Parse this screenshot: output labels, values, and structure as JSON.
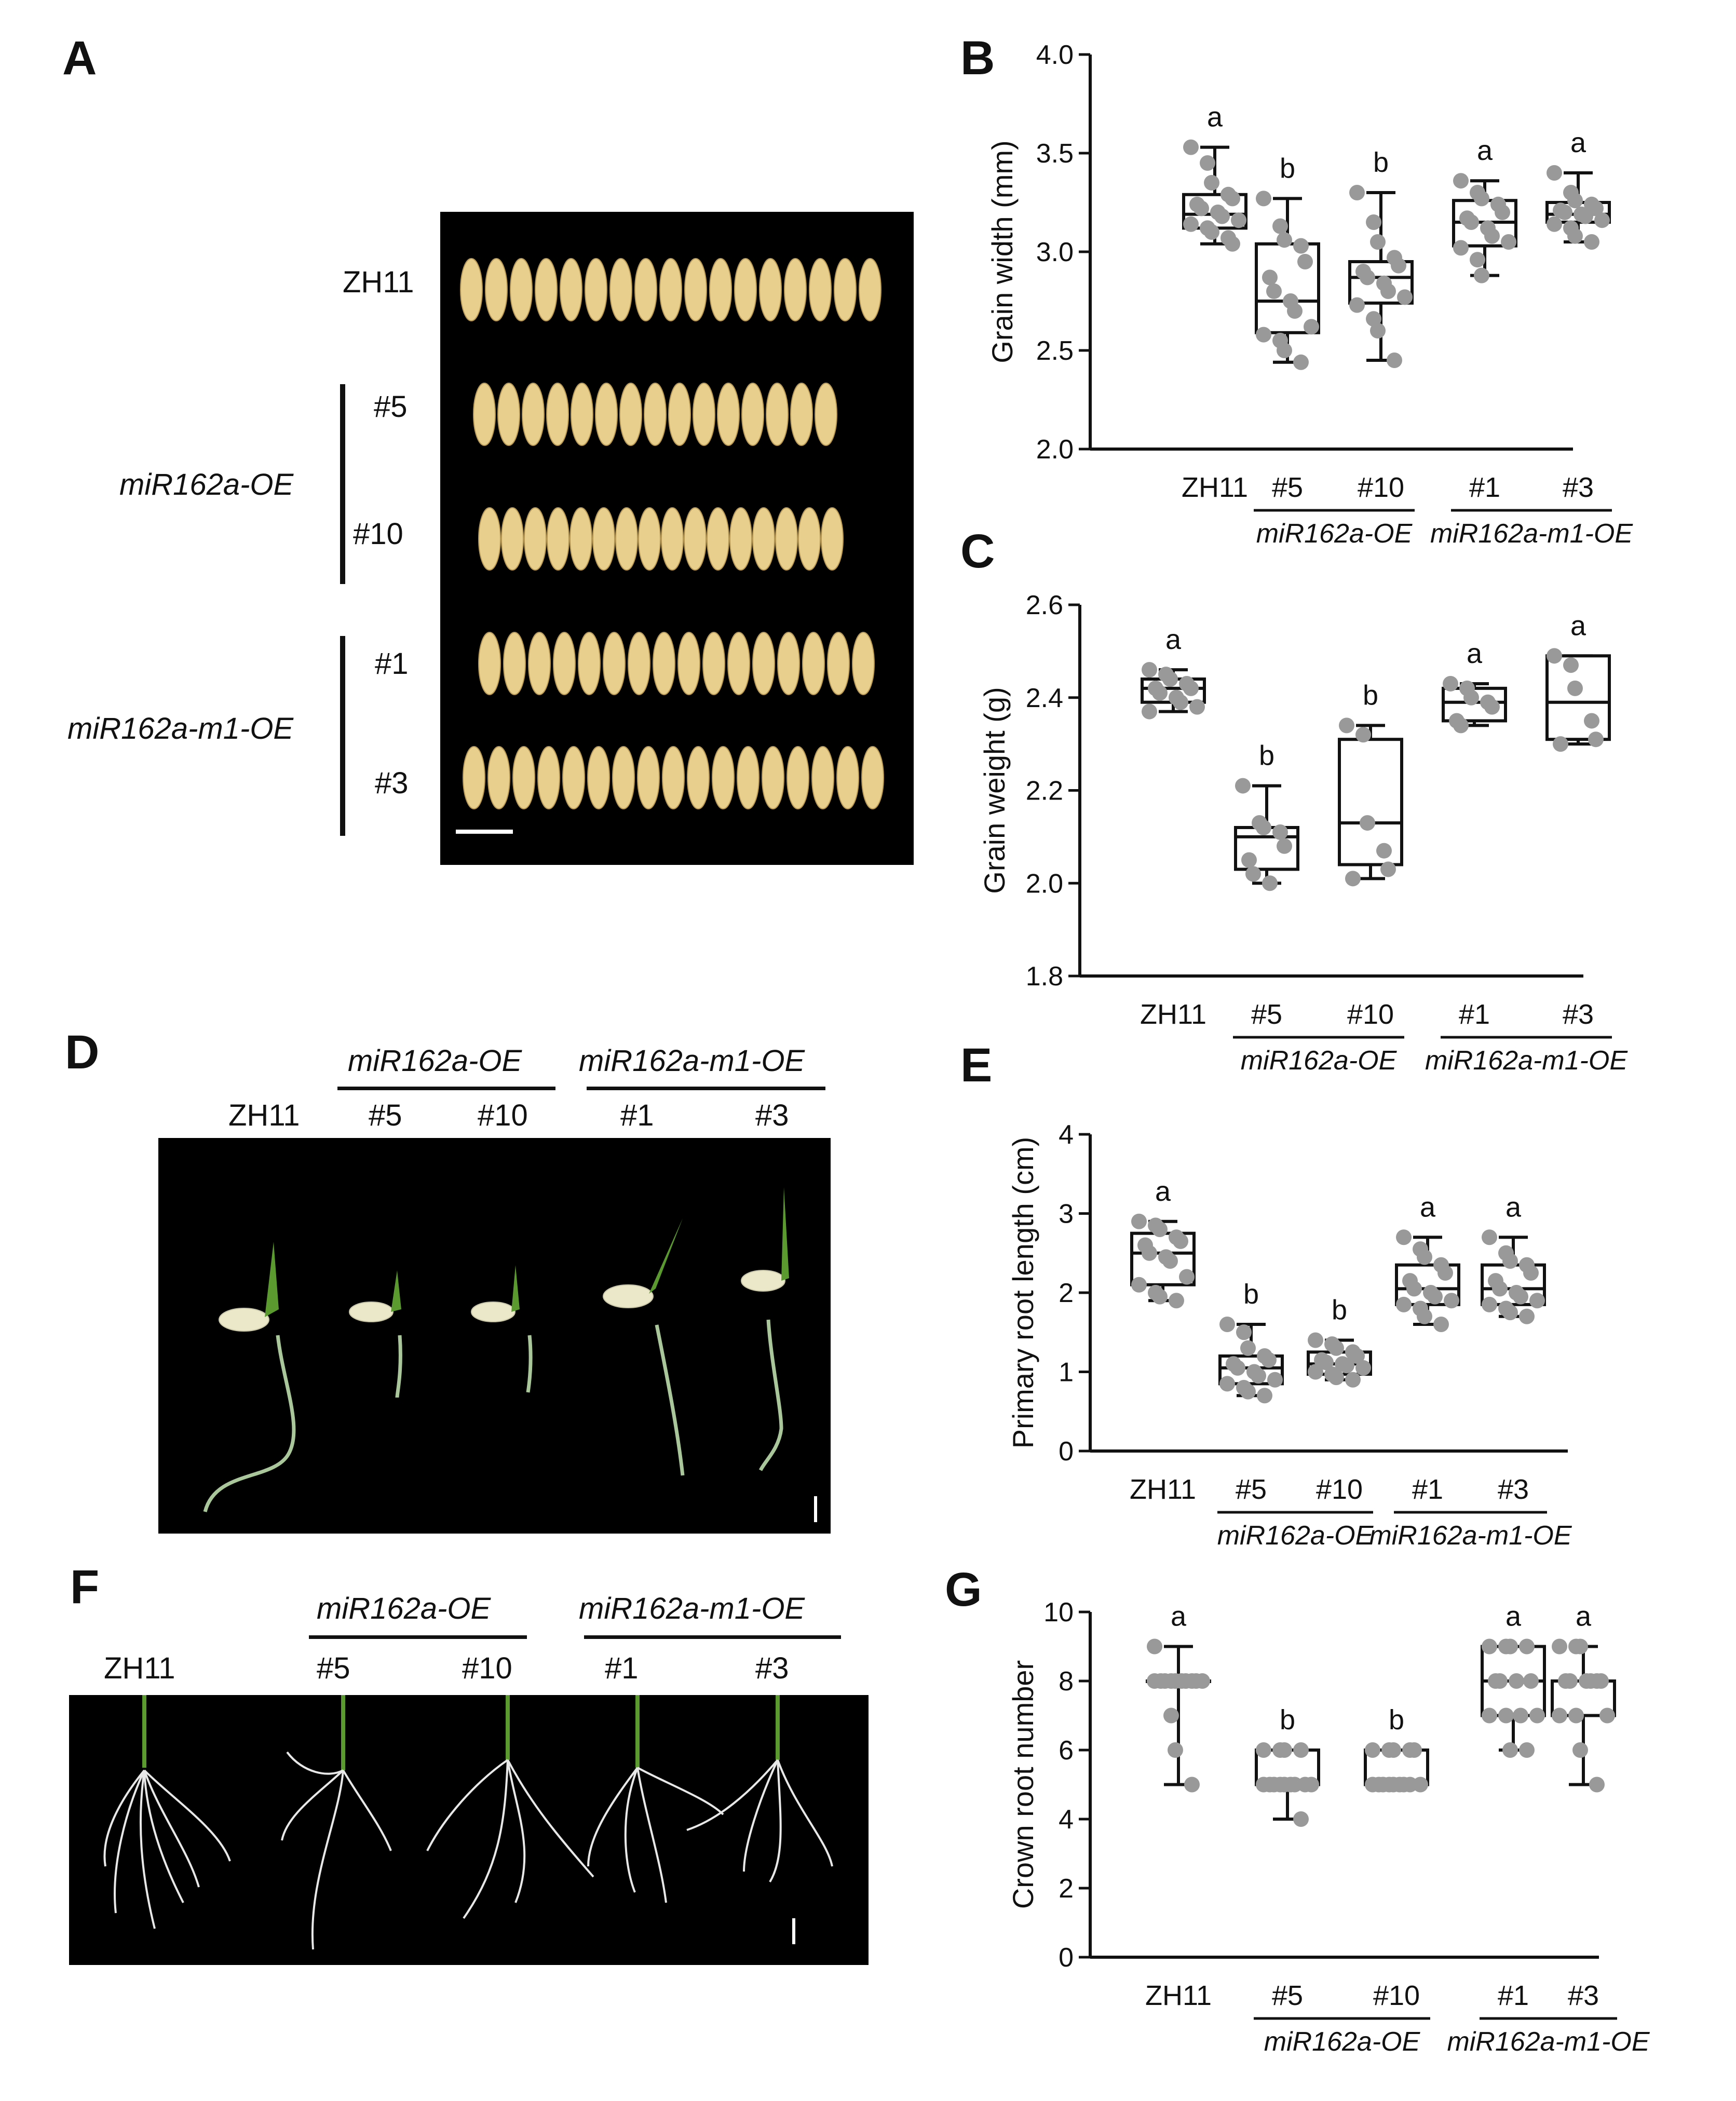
{
  "panels": {
    "A": {
      "letter": "A",
      "rows": [
        "ZH11",
        "#5",
        "#10",
        "#1",
        "#3"
      ],
      "groups": [
        "miR162a-OE",
        "miR162a-m1-OE"
      ]
    },
    "D": {
      "letter": "D",
      "labels": [
        "ZH11",
        "#5",
        "#10",
        "#1",
        "#3"
      ],
      "groups": [
        "miR162a-OE",
        "miR162a-m1-OE"
      ]
    },
    "F": {
      "letter": "F",
      "labels": [
        "ZH11",
        "#5",
        "#10",
        "#1",
        "#3"
      ],
      "groups": [
        "miR162a-OE",
        "miR162a-m1-OE"
      ]
    }
  },
  "colors": {
    "point": "#999999",
    "box": "#111111"
  },
  "chart_data": [
    {
      "panel": "B",
      "type": "box",
      "ylabel": "Grain width (mm)",
      "ylim": [
        2.0,
        4.0
      ],
      "yticks": [
        2.0,
        2.5,
        3.0,
        3.5,
        4.0
      ],
      "yticklabels": [
        "2.0",
        "2.5",
        "3.0",
        "3.5",
        "4.0"
      ],
      "categories": [
        "ZH11",
        "#5",
        "#10",
        "#1",
        "#3"
      ],
      "groups": [
        {
          "label": "miR162a-OE",
          "from": 1,
          "to": 2
        },
        {
          "label": "miR162a-m1-OE",
          "from": 3,
          "to": 4
        }
      ],
      "letters": [
        "a",
        "b",
        "b",
        "a",
        "a"
      ],
      "boxes": [
        {
          "min": 3.04,
          "q1": 3.12,
          "median": 3.19,
          "q3": 3.29,
          "max": 3.53
        },
        {
          "min": 2.44,
          "q1": 2.59,
          "median": 2.75,
          "q3": 3.04,
          "max": 3.27
        },
        {
          "min": 2.45,
          "q1": 2.74,
          "median": 2.87,
          "q3": 2.95,
          "max": 3.3
        },
        {
          "min": 2.88,
          "q1": 3.03,
          "median": 3.15,
          "q3": 3.26,
          "max": 3.36
        },
        {
          "min": 3.05,
          "q1": 3.15,
          "median": 3.19,
          "q3": 3.25,
          "max": 3.4
        }
      ],
      "points": [
        [
          3.53,
          3.45,
          3.35,
          3.29,
          3.27,
          3.24,
          3.22,
          3.2,
          3.18,
          3.16,
          3.14,
          3.12,
          3.1,
          3.07,
          3.04
        ],
        [
          3.27,
          3.13,
          3.06,
          3.03,
          2.95,
          2.87,
          2.8,
          2.75,
          2.7,
          2.62,
          2.58,
          2.55,
          2.5,
          2.44
        ],
        [
          3.3,
          3.15,
          3.05,
          2.97,
          2.93,
          2.9,
          2.87,
          2.84,
          2.8,
          2.77,
          2.73,
          2.66,
          2.6,
          2.45
        ],
        [
          3.36,
          3.3,
          3.27,
          3.24,
          3.2,
          3.17,
          3.15,
          3.12,
          3.08,
          3.05,
          3.02,
          2.96,
          2.88
        ],
        [
          3.4,
          3.3,
          3.26,
          3.24,
          3.22,
          3.21,
          3.2,
          3.19,
          3.18,
          3.16,
          3.14,
          3.12,
          3.08,
          3.05
        ]
      ]
    },
    {
      "panel": "C",
      "type": "box",
      "ylabel": "Grain weight (g)",
      "ylim": [
        1.8,
        2.6
      ],
      "yticks": [
        1.8,
        2.0,
        2.2,
        2.4,
        2.6
      ],
      "yticklabels": [
        "1.8",
        "2.0",
        "2.2",
        "2.4",
        "2.6"
      ],
      "categories": [
        "ZH11",
        "#5",
        "#10",
        "#1",
        "#3"
      ],
      "groups": [
        {
          "label": "miR162a-OE",
          "from": 1,
          "to": 2
        },
        {
          "label": "miR162a-m1-OE",
          "from": 3,
          "to": 4
        }
      ],
      "letters": [
        "a",
        "b",
        "b",
        "a",
        "a"
      ],
      "boxes": [
        {
          "min": 2.37,
          "q1": 2.39,
          "median": 2.42,
          "q3": 2.44,
          "max": 2.46
        },
        {
          "min": 2.0,
          "q1": 2.03,
          "median": 2.1,
          "q3": 2.12,
          "max": 2.21
        },
        {
          "min": 2.01,
          "q1": 2.04,
          "median": 2.13,
          "q3": 2.31,
          "max": 2.34
        },
        {
          "min": 2.34,
          "q1": 2.35,
          "median": 2.39,
          "q3": 2.42,
          "max": 2.43
        },
        {
          "min": 2.3,
          "q1": 2.31,
          "median": 2.39,
          "q3": 2.49,
          "max": 2.49
        }
      ],
      "points": [
        [
          2.46,
          2.45,
          2.44,
          2.43,
          2.42,
          2.42,
          2.41,
          2.4,
          2.39,
          2.38,
          2.37
        ],
        [
          2.21,
          2.13,
          2.12,
          2.11,
          2.08,
          2.05,
          2.02,
          2.0
        ],
        [
          2.34,
          2.32,
          2.13,
          2.07,
          2.03,
          2.01
        ],
        [
          2.43,
          2.42,
          2.4,
          2.39,
          2.38,
          2.35,
          2.34
        ],
        [
          2.49,
          2.47,
          2.42,
          2.35,
          2.31,
          2.3
        ]
      ]
    },
    {
      "panel": "E",
      "type": "box",
      "ylabel": "Primary root length (cm)",
      "ylim": [
        0,
        4
      ],
      "yticks": [
        0,
        1,
        2,
        3,
        4
      ],
      "yticklabels": [
        "0",
        "1",
        "2",
        "3",
        "4"
      ],
      "categories": [
        "ZH11",
        "#5",
        "#10",
        "#1",
        "#3"
      ],
      "groups": [
        {
          "label": "miR162a-OE",
          "from": 1,
          "to": 2
        },
        {
          "label": "miR162a-m1-OE",
          "from": 3,
          "to": 4
        }
      ],
      "letters": [
        "a",
        "b",
        "b",
        "a",
        "a"
      ],
      "boxes": [
        {
          "min": 1.9,
          "q1": 2.1,
          "median": 2.5,
          "q3": 2.75,
          "max": 2.9
        },
        {
          "min": 0.7,
          "q1": 0.85,
          "median": 1.05,
          "q3": 1.2,
          "max": 1.6
        },
        {
          "min": 0.9,
          "q1": 0.97,
          "median": 1.1,
          "q3": 1.25,
          "max": 1.4
        },
        {
          "min": 1.6,
          "q1": 1.85,
          "median": 2.05,
          "q3": 2.35,
          "max": 2.7
        },
        {
          "min": 1.7,
          "q1": 1.85,
          "median": 2.05,
          "q3": 2.35,
          "max": 2.7
        }
      ],
      "points": [
        [
          2.9,
          2.85,
          2.8,
          2.7,
          2.65,
          2.6,
          2.5,
          2.45,
          2.4,
          2.2,
          2.1,
          2.0,
          1.95,
          1.9
        ],
        [
          1.6,
          1.5,
          1.3,
          1.2,
          1.15,
          1.1,
          1.05,
          1.0,
          0.95,
          0.9,
          0.85,
          0.8,
          0.75,
          0.7
        ],
        [
          1.4,
          1.35,
          1.3,
          1.25,
          1.2,
          1.15,
          1.12,
          1.1,
          1.08,
          1.05,
          1.0,
          0.97,
          0.93,
          0.9
        ],
        [
          2.7,
          2.55,
          2.45,
          2.35,
          2.25,
          2.15,
          2.05,
          2.0,
          1.95,
          1.9,
          1.85,
          1.8,
          1.7,
          1.6
        ],
        [
          2.7,
          2.5,
          2.4,
          2.35,
          2.25,
          2.15,
          2.05,
          2.0,
          1.95,
          1.9,
          1.85,
          1.8,
          1.75,
          1.7
        ]
      ]
    },
    {
      "panel": "G",
      "type": "box",
      "ylabel": "Crown root number",
      "ylim": [
        0,
        10
      ],
      "yticks": [
        0,
        2,
        4,
        6,
        8,
        10
      ],
      "yticklabels": [
        "0",
        "2",
        "4",
        "6",
        "8",
        "10"
      ],
      "categories": [
        "ZH11",
        "#5",
        "#10",
        "#1",
        "#3"
      ],
      "groups": [
        {
          "label": "miR162a-OE",
          "from": 1,
          "to": 2
        },
        {
          "label": "miR162a-m1-OE",
          "from": 3,
          "to": 4
        }
      ],
      "letters": [
        "a",
        "b",
        "b",
        "a",
        "a"
      ],
      "boxes": [
        {
          "min": 5,
          "q1": 8,
          "median": 8,
          "q3": 8,
          "max": 9
        },
        {
          "min": 4,
          "q1": 5,
          "median": 5,
          "q3": 6,
          "max": 6
        },
        {
          "min": 5,
          "q1": 5,
          "median": 5,
          "q3": 6,
          "max": 6
        },
        {
          "min": 6,
          "q1": 7,
          "median": 8,
          "q3": 9,
          "max": 9
        },
        {
          "min": 5,
          "q1": 7,
          "median": 8,
          "q3": 8,
          "max": 9
        }
      ],
      "points": [
        [
          9,
          8,
          8,
          8,
          8,
          8,
          8,
          8,
          8,
          8,
          8,
          7,
          6,
          5
        ],
        [
          6,
          6,
          6,
          6,
          5,
          5,
          5,
          5,
          5,
          5,
          5,
          5,
          5,
          4
        ],
        [
          6,
          6,
          6,
          6,
          6,
          5,
          5,
          5,
          5,
          5,
          5,
          5,
          5,
          5
        ],
        [
          9,
          9,
          9,
          9,
          8,
          8,
          8,
          8,
          7,
          7,
          7,
          7,
          6,
          6
        ],
        [
          9,
          9,
          9,
          8,
          8,
          8,
          8,
          8,
          8,
          7,
          7,
          7,
          6,
          5
        ]
      ]
    }
  ]
}
